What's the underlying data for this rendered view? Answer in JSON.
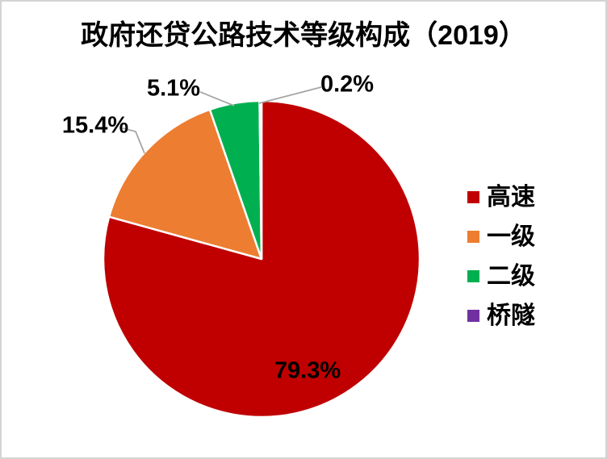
{
  "page": {
    "background_color": "#ffffff",
    "border_color": "#d4d4d4"
  },
  "chart_data": {
    "type": "pie",
    "title": "政府还贷公路技术等级构成（2019）",
    "direction": "clockwise",
    "start_angle_deg": 0,
    "legend_position": "right",
    "grid": false,
    "slices": [
      {
        "label": "高速",
        "value": 79.3,
        "display": "79.3%",
        "color": "#C00000"
      },
      {
        "label": "一级",
        "value": 15.4,
        "display": "15.4%",
        "color": "#ED7D31"
      },
      {
        "label": "二级",
        "value": 5.1,
        "display": "5.1%",
        "color": "#00B050"
      },
      {
        "label": "桥隧",
        "value": 0.2,
        "display": "0.2%",
        "color": "#7030A0"
      }
    ],
    "data_label_color": "#000000",
    "leader_line_color": "#A6A6A6",
    "slice_border_color": "#ffffff"
  }
}
